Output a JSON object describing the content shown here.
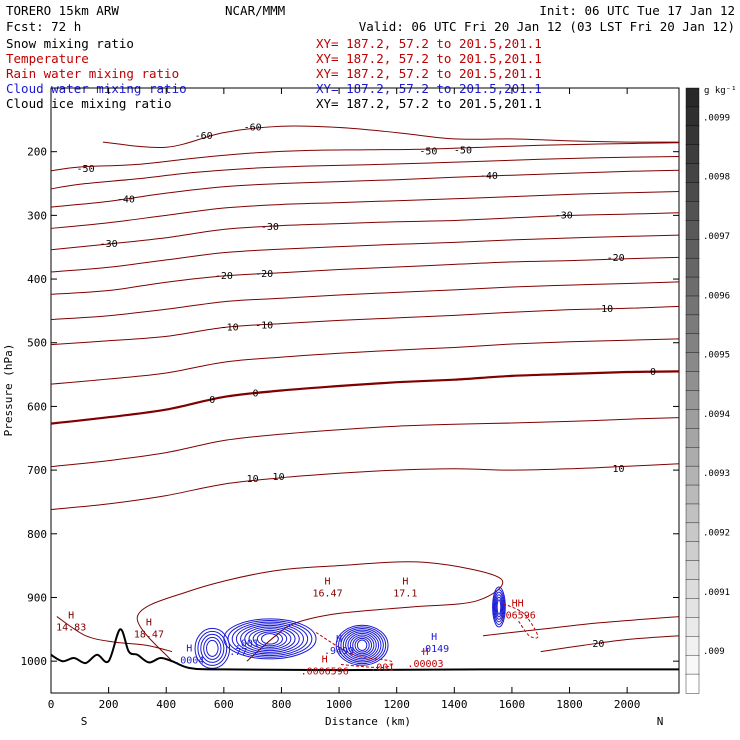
{
  "header": {
    "model": "TORERO  15km ARW",
    "center": "NCAR/MMM",
    "init": "Init: 06 UTC Tue 17 Jan 12",
    "fcst": "Fcst:   72 h",
    "valid": "Valid: 06 UTC Fri 20 Jan 12 (03 LST Fri 20 Jan 12)"
  },
  "colors": {
    "temperature": "#800000",
    "temperature_label": "#c00000",
    "rain": "#c00000",
    "cloud_water": "#1a1ad6",
    "ice": "#000000",
    "snow": "#000000"
  },
  "chart_data": {
    "type": "cross-section",
    "title": "Snow mixing ratio / Temperature / Rain water mixing ratio / Cloud water mixing ratio / Cloud ice mixing ratio",
    "fields": [
      {
        "name": "Snow mixing ratio",
        "xy": "XY= 187.2, 57.2 to 201.5,201.1",
        "color": "#000000"
      },
      {
        "name": "Temperature",
        "xy": "XY= 187.2, 57.2 to 201.5,201.1",
        "color": "#c00000"
      },
      {
        "name": "Rain water mixing ratio",
        "xy": "XY= 187.2, 57.2 to 201.5,201.1",
        "color": "#c00000"
      },
      {
        "name": "Cloud water mixing ratio",
        "xy": "XY= 187.2, 57.2 to 201.5,201.1",
        "color": "#1a1ad6"
      },
      {
        "name": "Cloud ice mixing ratio",
        "xy": "XY= 187.2, 57.2 to 201.5,201.1",
        "color": "#000000"
      }
    ],
    "xlabel": "Distance (km)",
    "ylabel": "Pressure (hPa)",
    "xlim": [
      0,
      2180
    ],
    "ylim": [
      100,
      1050
    ],
    "x_ticks": [
      0,
      200,
      400,
      600,
      800,
      1000,
      1200,
      1400,
      1600,
      1800,
      2000
    ],
    "y_ticks": [
      200,
      300,
      400,
      500,
      600,
      700,
      800,
      900,
      1000
    ],
    "direction_left": "S",
    "direction_right": "N",
    "colorbar": {
      "units": "g kg⁻¹",
      "labels": [
        ".0099",
        ".0098",
        ".0097",
        ".0096",
        ".0095",
        ".0094",
        ".0093",
        ".0092",
        ".0091",
        ".009"
      ]
    },
    "temperature_isotherms": [
      {
        "value": -60,
        "points": [
          [
            180,
            185
          ],
          [
            400,
            193
          ],
          [
            600,
            170
          ],
          [
            800,
            160
          ],
          [
            1000,
            162
          ],
          [
            1200,
            170
          ],
          [
            1400,
            180
          ],
          [
            1600,
            180
          ],
          [
            1800,
            183
          ],
          [
            2000,
            185
          ],
          [
            2180,
            185
          ]
        ]
      },
      {
        "value": -50,
        "points": [
          [
            0,
            230
          ],
          [
            100,
            224
          ],
          [
            300,
            220
          ],
          [
            500,
            210
          ],
          [
            700,
            202
          ],
          [
            900,
            198
          ],
          [
            1100,
            197
          ],
          [
            1300,
            196
          ],
          [
            1500,
            193
          ],
          [
            1700,
            190
          ],
          [
            1900,
            188
          ],
          [
            2180,
            186
          ]
        ]
      },
      {
        "value": -40,
        "points": [
          [
            0,
            287
          ],
          [
            200,
            278
          ],
          [
            400,
            265
          ],
          [
            600,
            255
          ],
          [
            800,
            250
          ],
          [
            1000,
            247
          ],
          [
            1200,
            244
          ],
          [
            1400,
            240
          ],
          [
            1600,
            237
          ],
          [
            1800,
            234
          ],
          [
            2000,
            231
          ],
          [
            2180,
            229
          ]
        ]
      },
      {
        "value": -30,
        "points": [
          [
            0,
            354
          ],
          [
            200,
            345
          ],
          [
            400,
            335
          ],
          [
            600,
            322
          ],
          [
            800,
            316
          ],
          [
            1000,
            313
          ],
          [
            1200,
            310
          ],
          [
            1400,
            308
          ],
          [
            1600,
            304
          ],
          [
            1800,
            300
          ],
          [
            2000,
            298
          ],
          [
            2180,
            296
          ]
        ]
      },
      {
        "value": -20,
        "points": [
          [
            0,
            424
          ],
          [
            200,
            418
          ],
          [
            400,
            405
          ],
          [
            600,
            395
          ],
          [
            800,
            390
          ],
          [
            1000,
            385
          ],
          [
            1200,
            381
          ],
          [
            1400,
            377
          ],
          [
            1600,
            373
          ],
          [
            1800,
            371
          ],
          [
            2000,
            368
          ],
          [
            2180,
            366
          ]
        ]
      },
      {
        "value": -10,
        "points": [
          [
            0,
            503
          ],
          [
            200,
            497
          ],
          [
            400,
            490
          ],
          [
            600,
            476
          ],
          [
            800,
            470
          ],
          [
            1000,
            465
          ],
          [
            1200,
            461
          ],
          [
            1400,
            457
          ],
          [
            1600,
            452
          ],
          [
            1800,
            448
          ],
          [
            2000,
            446
          ],
          [
            2180,
            443
          ]
        ]
      },
      {
        "value": 0,
        "points": [
          [
            0,
            627
          ],
          [
            200,
            617
          ],
          [
            400,
            605
          ],
          [
            600,
            585
          ],
          [
            800,
            575
          ],
          [
            1000,
            568
          ],
          [
            1200,
            562
          ],
          [
            1400,
            558
          ],
          [
            1600,
            552
          ],
          [
            1800,
            549
          ],
          [
            2000,
            546
          ],
          [
            2180,
            545
          ]
        ]
      },
      {
        "value": 10,
        "points": [
          [
            0,
            762
          ],
          [
            200,
            753
          ],
          [
            400,
            740
          ],
          [
            600,
            722
          ],
          [
            800,
            712
          ],
          [
            1000,
            705
          ],
          [
            1200,
            700
          ],
          [
            1400,
            698
          ],
          [
            1600,
            700
          ],
          [
            1800,
            698
          ],
          [
            2000,
            694
          ],
          [
            2180,
            690
          ]
        ]
      },
      {
        "value": 20,
        "points": [
          [
            1700,
            985
          ],
          [
            1850,
            975
          ],
          [
            2000,
            966
          ],
          [
            2180,
            960
          ]
        ]
      }
    ],
    "annotations": [
      {
        "text": "H",
        "sub": "14.83",
        "x": 70,
        "p": 933,
        "color": "#800000"
      },
      {
        "text": "H",
        "sub": "18.47",
        "x": 340,
        "p": 944,
        "color": "#800000"
      },
      {
        "text": "H",
        "sub": "16.47",
        "x": 960,
        "p": 880,
        "color": "#800000"
      },
      {
        "text": "H",
        "sub": "17.1",
        "x": 1230,
        "p": 880,
        "color": "#800000"
      },
      {
        "text": "H",
        "sub": ".9499",
        "x": 1000,
        "p": 970,
        "color": "#1a1ad6"
      },
      {
        "text": "H",
        "sub": ".0149",
        "x": 1330,
        "p": 967,
        "color": "#1a1ad6"
      },
      {
        "text": "H",
        "sub": ".00003",
        "x": 1300,
        "p": 990,
        "color": "#c00000"
      },
      {
        "text": "H",
        "sub": ".0006596",
        "x": 950,
        "p": 1002,
        "color": "#c00000"
      },
      {
        "text": "H",
        "sub": ".0004",
        "x": 480,
        "p": 985,
        "color": "#1a1ad6"
      },
      {
        "text": "HH",
        "sub": ".06596",
        "x": 1620,
        "p": 914,
        "color": "#c00000"
      }
    ],
    "contour_labels": [
      {
        "text": "-60",
        "x": 530,
        "p": 175,
        "color": "#000000"
      },
      {
        "text": "-60",
        "x": 700,
        "p": 162,
        "color": "#000000"
      },
      {
        "text": "-50",
        "x": 120,
        "p": 227,
        "color": "#000000"
      },
      {
        "text": "-50",
        "x": 1310,
        "p": 200,
        "color": "#000000"
      },
      {
        "text": "-50",
        "x": 1430,
        "p": 198,
        "color": "#000000"
      },
      {
        "text": "-40",
        "x": 260,
        "p": 275,
        "color": "#000000"
      },
      {
        "text": "-40",
        "x": 1520,
        "p": 238,
        "color": "#000000"
      },
      {
        "text": "-30",
        "x": 200,
        "p": 345,
        "color": "#000000"
      },
      {
        "text": "-30",
        "x": 760,
        "p": 318,
        "color": "#000000"
      },
      {
        "text": "-30",
        "x": 1780,
        "p": 300,
        "color": "#000000"
      },
      {
        "text": "-20",
        "x": 600,
        "p": 395,
        "color": "#000000"
      },
      {
        "text": "-20",
        "x": 740,
        "p": 392,
        "color": "#000000"
      },
      {
        "text": "-20",
        "x": 1960,
        "p": 367,
        "color": "#000000"
      },
      {
        "text": "-10",
        "x": 620,
        "p": 476,
        "color": "#000000"
      },
      {
        "text": "-10",
        "x": 740,
        "p": 473,
        "color": "#000000"
      },
      {
        "text": "-10",
        "x": 1920,
        "p": 447,
        "color": "#000000"
      },
      {
        "text": "0",
        "x": 560,
        "p": 590,
        "color": "#000000"
      },
      {
        "text": "0",
        "x": 710,
        "p": 580,
        "color": "#000000"
      },
      {
        "text": "0",
        "x": 2090,
        "p": 546,
        "color": "#000000"
      },
      {
        "text": "10",
        "x": 700,
        "p": 714,
        "color": "#000000"
      },
      {
        "text": "10",
        "x": 790,
        "p": 711,
        "color": "#000000"
      },
      {
        "text": "10",
        "x": 1970,
        "p": 698,
        "color": "#000000"
      },
      {
        "text": "20",
        "x": 1900,
        "p": 973,
        "color": "#000000"
      },
      {
        "text": ".001",
        "x": 680,
        "p": 972,
        "color": "#1a1ad6"
      },
      {
        "text": ".77",
        "x": 650,
        "p": 986,
        "color": "#1a1ad6"
      },
      {
        "text": ".001",
        "x": 1150,
        "p": 1010,
        "color": "#c00000"
      }
    ]
  }
}
